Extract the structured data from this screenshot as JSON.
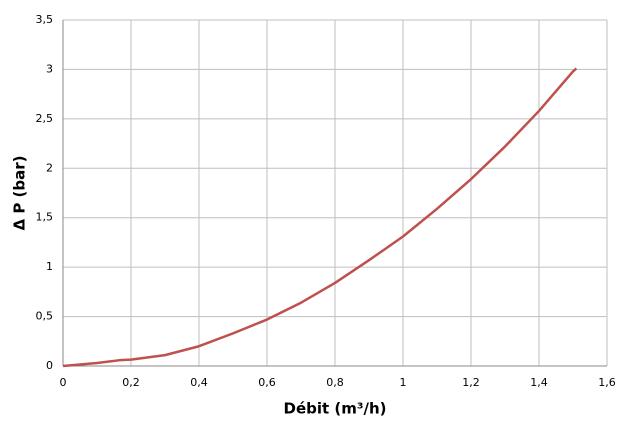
{
  "chart_data": {
    "type": "line",
    "x_label": "Débit (m³/h)",
    "y_label": "Δ P (bar)",
    "series": [
      {
        "color": "#c0504d",
        "x": [
          0,
          0.1,
          0.17,
          0.2,
          0.3,
          0.4,
          0.5,
          0.6,
          0.7,
          0.8,
          0.9,
          1.0,
          1.1,
          1.2,
          1.3,
          1.4,
          1.5,
          1.51
        ],
        "values": [
          0,
          0.03,
          0.06,
          0.065,
          0.11,
          0.2,
          0.33,
          0.47,
          0.64,
          0.84,
          1.07,
          1.31,
          1.59,
          1.89,
          2.22,
          2.58,
          2.98,
          3.01
        ]
      }
    ],
    "xlim": [
      0,
      1.6
    ],
    "xticks": [
      0,
      {
        "value": 0.2,
        "label": "0,2"
      },
      {
        "value": 0.4,
        "label": "0,4"
      },
      {
        "value": 0.6,
        "label": "0,6"
      },
      {
        "value": 0.8,
        "label": "0,8"
      },
      1,
      {
        "value": 1.2,
        "label": "1,2"
      },
      {
        "value": 1.4,
        "label": "1,4"
      },
      {
        "value": 1.6,
        "label": "1,6"
      }
    ],
    "ylim": [
      0,
      3.5
    ],
    "yticks": [
      0,
      {
        "value": 0.5,
        "label": "0,5"
      },
      1,
      {
        "value": 1.5,
        "label": "1,5"
      },
      2,
      {
        "value": 2.5,
        "label": "2,5"
      },
      3,
      {
        "value": 3.5,
        "label": "3,5"
      }
    ],
    "grid": true
  }
}
